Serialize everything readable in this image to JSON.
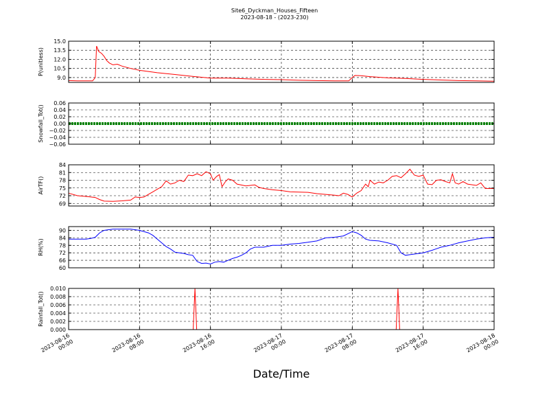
{
  "chart_data": {
    "type": "line",
    "title": "Site6_Dyckman_Houses_Fifteen",
    "subtitle": "2023-08-18 - (2023-230)",
    "xlabel": "Date/Time",
    "x_ticks": [
      {
        "t": 0,
        "line1": "2023-08-16",
        "line2": "00:00"
      },
      {
        "t": 8,
        "line1": "2023-08-16",
        "line2": "08:00"
      },
      {
        "t": 16,
        "line1": "2023-08-16",
        "line2": "16:00"
      },
      {
        "t": 24,
        "line1": "2023-08-17",
        "line2": "00:00"
      },
      {
        "t": 32,
        "line1": "2023-08-17",
        "line2": "08:00"
      },
      {
        "t": 40,
        "line1": "2023-08-17",
        "line2": "16:00"
      },
      {
        "t": 48,
        "line1": "2023-08-18",
        "line2": "00:00"
      }
    ],
    "x_range": [
      0,
      48
    ],
    "grid": true,
    "panels": [
      {
        "ylabel": "P(unitless)",
        "ylim": [
          8.2,
          15.0
        ],
        "yticks": [
          9.0,
          10.5,
          12.0,
          13.5,
          15.0
        ],
        "tick_labels": [
          "9.0",
          "10.5",
          "12.0",
          "13.5",
          "15.0"
        ],
        "color": "#ff0000",
        "series": [
          [
            0,
            8.5
          ],
          [
            1,
            8.45
          ],
          [
            2,
            8.45
          ],
          [
            2.7,
            8.45
          ],
          [
            3,
            9.0
          ],
          [
            3.15,
            14.2
          ],
          [
            3.4,
            13.3
          ],
          [
            3.7,
            13.0
          ],
          [
            4,
            12.5
          ],
          [
            4.3,
            11.8
          ],
          [
            4.6,
            11.4
          ],
          [
            5,
            11.1
          ],
          [
            5.5,
            11.2
          ],
          [
            6,
            10.9
          ],
          [
            7,
            10.5
          ],
          [
            8,
            10.2
          ],
          [
            9,
            10.0
          ],
          [
            10,
            9.8
          ],
          [
            12,
            9.5
          ],
          [
            14,
            9.2
          ],
          [
            16,
            8.9
          ],
          [
            18,
            8.9
          ],
          [
            20,
            8.8
          ],
          [
            22,
            8.7
          ],
          [
            24,
            8.65
          ],
          [
            26,
            8.55
          ],
          [
            28,
            8.5
          ],
          [
            30,
            8.45
          ],
          [
            31.6,
            8.45
          ],
          [
            32,
            9.0
          ],
          [
            32.3,
            9.35
          ],
          [
            33,
            9.3
          ],
          [
            34,
            9.15
          ],
          [
            36,
            8.95
          ],
          [
            38,
            8.85
          ],
          [
            40,
            8.7
          ],
          [
            42,
            8.6
          ],
          [
            44,
            8.5
          ],
          [
            46,
            8.45
          ],
          [
            48,
            8.4
          ]
        ]
      },
      {
        "ylabel": "Snowfall_Tot()",
        "ylim": [
          -0.06,
          0.06
        ],
        "yticks": [
          -0.06,
          -0.04,
          -0.02,
          0.0,
          0.02,
          0.04,
          0.06
        ],
        "tick_labels": [
          "−0.06",
          "−0.04",
          "−0.02",
          "0.00",
          "0.02",
          "0.04",
          "0.06"
        ],
        "color": "#008000",
        "series": [
          [
            0,
            0
          ],
          [
            48,
            0
          ]
        ]
      },
      {
        "ylabel": "AirTF()",
        "ylim": [
          68,
          84
        ],
        "yticks": [
          69,
          72,
          75,
          78,
          81,
          84
        ],
        "tick_labels": [
          "69",
          "72",
          "75",
          "78",
          "81",
          "84"
        ],
        "color": "#ff0000",
        "series": [
          [
            0,
            73
          ],
          [
            1,
            72
          ],
          [
            2,
            71.7
          ],
          [
            3,
            71.3
          ],
          [
            3.5,
            70.5
          ],
          [
            4,
            69.9
          ],
          [
            5,
            69.8
          ],
          [
            6,
            70
          ],
          [
            7,
            70.3
          ],
          [
            7.5,
            71.5
          ],
          [
            8,
            71.3
          ],
          [
            8.5,
            71.5
          ],
          [
            9,
            72.5
          ],
          [
            9.5,
            73.5
          ],
          [
            10,
            74.5
          ],
          [
            10.5,
            75.5
          ],
          [
            11,
            77.8
          ],
          [
            11.5,
            76.5
          ],
          [
            12,
            77
          ],
          [
            12.5,
            78
          ],
          [
            13,
            77.5
          ],
          [
            13.5,
            80
          ],
          [
            14,
            79.8
          ],
          [
            14.5,
            80.5
          ],
          [
            15,
            79.8
          ],
          [
            15.5,
            81.3
          ],
          [
            16,
            80.5
          ],
          [
            16.3,
            78
          ],
          [
            16.7,
            79.5
          ],
          [
            17,
            80.2
          ],
          [
            17.3,
            75.5
          ],
          [
            17.7,
            77.5
          ],
          [
            18,
            78.5
          ],
          [
            18.5,
            78
          ],
          [
            19,
            76.5
          ],
          [
            20,
            75.8
          ],
          [
            20.5,
            76
          ],
          [
            21,
            76.2
          ],
          [
            21.5,
            75.2
          ],
          [
            22,
            74.8
          ],
          [
            23,
            74.3
          ],
          [
            24,
            74
          ],
          [
            25,
            73.5
          ],
          [
            26,
            73.4
          ],
          [
            27,
            73.3
          ],
          [
            28,
            72.8
          ],
          [
            29,
            72.5
          ],
          [
            30,
            72.2
          ],
          [
            30.5,
            72
          ],
          [
            31,
            73
          ],
          [
            31.5,
            72.5
          ],
          [
            32,
            71.5
          ],
          [
            32.5,
            73
          ],
          [
            33,
            74
          ],
          [
            33.5,
            76.5
          ],
          [
            33.8,
            75.5
          ],
          [
            34,
            78
          ],
          [
            34.5,
            76.5
          ],
          [
            35,
            77.3
          ],
          [
            35.5,
            77
          ],
          [
            36,
            78
          ],
          [
            36.5,
            79.5
          ],
          [
            37,
            79.8
          ],
          [
            37.5,
            79
          ],
          [
            38,
            80.5
          ],
          [
            38.5,
            82.3
          ],
          [
            39,
            80
          ],
          [
            39.5,
            79.5
          ],
          [
            40,
            80
          ],
          [
            40.5,
            76.5
          ],
          [
            41,
            76.3
          ],
          [
            41.5,
            78
          ],
          [
            42,
            78.2
          ],
          [
            42.5,
            77.5
          ],
          [
            43,
            77
          ],
          [
            43.3,
            80.5
          ],
          [
            43.6,
            77
          ],
          [
            44,
            76.5
          ],
          [
            44.5,
            77.5
          ],
          [
            45,
            76.5
          ],
          [
            46,
            76
          ],
          [
            46.5,
            77
          ],
          [
            47,
            74.8
          ],
          [
            48,
            74.8
          ]
        ]
      },
      {
        "ylabel": "RH(%)",
        "ylim": [
          60,
          93
        ],
        "yticks": [
          60,
          66,
          72,
          78,
          84,
          90
        ],
        "tick_labels": [
          "60",
          "66",
          "72",
          "78",
          "84",
          "90"
        ],
        "color": "#0000ff",
        "series": [
          [
            0,
            83
          ],
          [
            1,
            83
          ],
          [
            2,
            83
          ],
          [
            2.5,
            83.5
          ],
          [
            3,
            84.5
          ],
          [
            3.5,
            88
          ],
          [
            4,
            90
          ],
          [
            5,
            91
          ],
          [
            6,
            91
          ],
          [
            7,
            91
          ],
          [
            8,
            90
          ],
          [
            9,
            88
          ],
          [
            9.5,
            86
          ],
          [
            10,
            83
          ],
          [
            10.5,
            80
          ],
          [
            11,
            77
          ],
          [
            11.5,
            75
          ],
          [
            12,
            72.5
          ],
          [
            12.5,
            72
          ],
          [
            13,
            71.5
          ],
          [
            13.5,
            70.5
          ],
          [
            14,
            70
          ],
          [
            14.5,
            65
          ],
          [
            15,
            63.5
          ],
          [
            15.5,
            63.8
          ],
          [
            16,
            63
          ],
          [
            16.5,
            64.5
          ],
          [
            17,
            65
          ],
          [
            17.5,
            64.5
          ],
          [
            18,
            66
          ],
          [
            18.5,
            67.5
          ],
          [
            19,
            68.5
          ],
          [
            19.5,
            70
          ],
          [
            20,
            72
          ],
          [
            20.5,
            75
          ],
          [
            21,
            76.5
          ],
          [
            22,
            76.5
          ],
          [
            23,
            78
          ],
          [
            24,
            78
          ],
          [
            25,
            79
          ],
          [
            26,
            79.5
          ],
          [
            27,
            80.5
          ],
          [
            28,
            81.5
          ],
          [
            29,
            84
          ],
          [
            30,
            84.5
          ],
          [
            31,
            85.5
          ],
          [
            32,
            89
          ],
          [
            32.5,
            88
          ],
          [
            33,
            86
          ],
          [
            33.5,
            83
          ],
          [
            34,
            82
          ],
          [
            35,
            81.5
          ],
          [
            36,
            80
          ],
          [
            37,
            78
          ],
          [
            37.5,
            72
          ],
          [
            38,
            70
          ],
          [
            38.5,
            70.5
          ],
          [
            39,
            71
          ],
          [
            40,
            72
          ],
          [
            40.5,
            73
          ],
          [
            41,
            74
          ],
          [
            42,
            76.5
          ],
          [
            43,
            78
          ],
          [
            44,
            80
          ],
          [
            45,
            81.5
          ],
          [
            46,
            83
          ],
          [
            47,
            84
          ],
          [
            48,
            84.5
          ]
        ]
      },
      {
        "ylabel": "Rainfall_Tot()",
        "ylim": [
          0,
          0.01
        ],
        "yticks": [
          0.0,
          0.002,
          0.004,
          0.006,
          0.008,
          0.01
        ],
        "tick_labels": [
          "0.000",
          "0.002",
          "0.004",
          "0.006",
          "0.008",
          "0.010"
        ],
        "color": "#ff0000",
        "series": [
          [
            0,
            0
          ],
          [
            14.05,
            0
          ],
          [
            14.25,
            0.01
          ],
          [
            14.45,
            0
          ],
          [
            36.95,
            0
          ],
          [
            37.15,
            0.01
          ],
          [
            37.35,
            0
          ],
          [
            48,
            0
          ]
        ]
      }
    ]
  }
}
